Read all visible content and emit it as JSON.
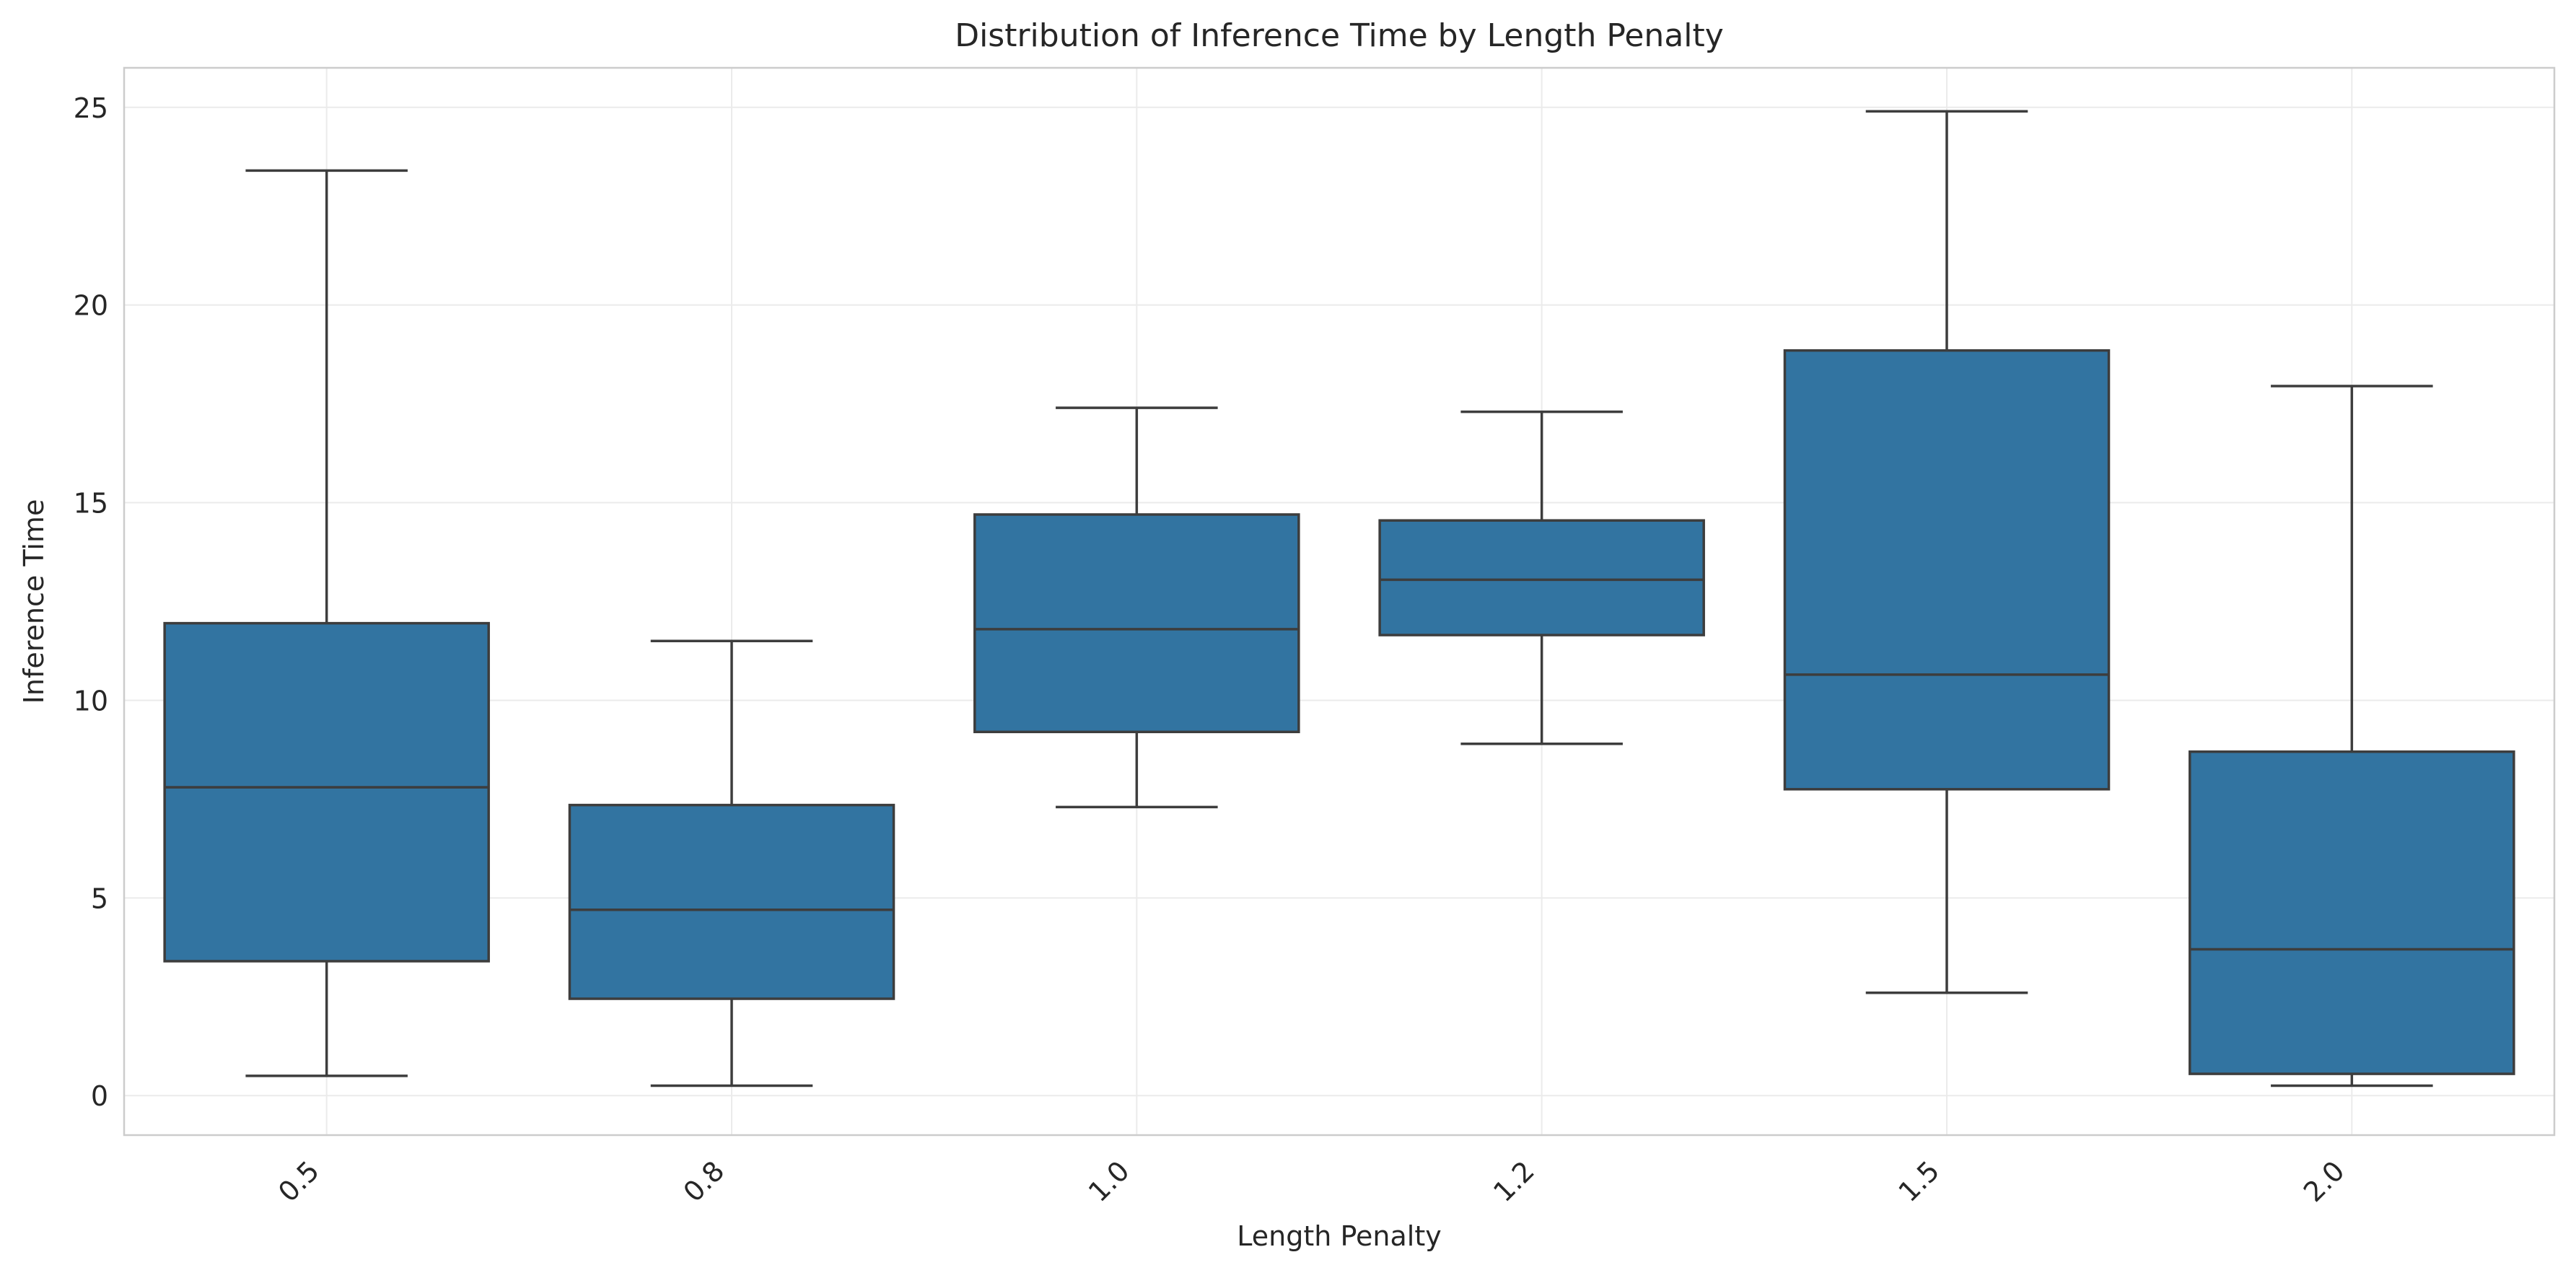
{
  "chart_data": {
    "type": "box",
    "title": "Distribution of Inference Time by Length Penalty",
    "xlabel": "Length Penalty",
    "ylabel": "Inference Time",
    "categories": [
      "0.5",
      "0.8",
      "1.0",
      "1.2",
      "1.5",
      "2.0"
    ],
    "ylim": [
      -1,
      26
    ],
    "yticks": [
      0,
      5,
      10,
      15,
      20,
      25
    ],
    "grid": true,
    "box_color": "#3274a1",
    "line_color": "#3d3d3d",
    "boxes": [
      {
        "category": "0.5",
        "whisker_low": 0.5,
        "q1": 3.4,
        "median": 7.8,
        "q3": 11.95,
        "whisker_high": 23.4
      },
      {
        "category": "0.8",
        "whisker_low": 0.25,
        "q1": 2.45,
        "median": 4.7,
        "q3": 7.35,
        "whisker_high": 11.5
      },
      {
        "category": "1.0",
        "whisker_low": 7.3,
        "q1": 9.2,
        "median": 11.8,
        "q3": 14.7,
        "whisker_high": 17.4
      },
      {
        "category": "1.2",
        "whisker_low": 8.9,
        "q1": 11.65,
        "median": 13.05,
        "q3": 14.55,
        "whisker_high": 17.3
      },
      {
        "category": "1.5",
        "whisker_low": 2.6,
        "q1": 7.75,
        "median": 10.65,
        "q3": 18.85,
        "whisker_high": 24.9
      },
      {
        "category": "2.0",
        "whisker_low": 0.25,
        "q1": 0.55,
        "median": 3.7,
        "q3": 8.7,
        "whisker_high": 17.95
      }
    ]
  }
}
